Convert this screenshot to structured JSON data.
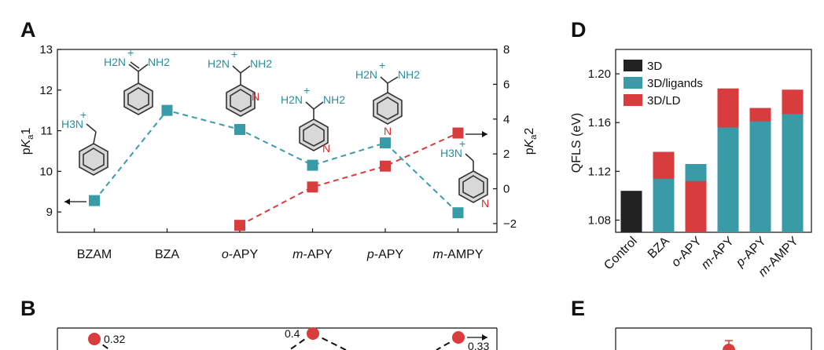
{
  "panels": {
    "A": "A",
    "B": "B",
    "D": "D",
    "E": "E"
  },
  "colors": {
    "teal": "#3a9ba8",
    "red": "#d93c3c",
    "black": "#222222"
  },
  "chart_data": [
    {
      "id": "A",
      "type": "scatter",
      "categories": [
        "BZAM",
        "BZA",
        "o-APY",
        "m-APY",
        "p-APY",
        "m-AMPY"
      ],
      "category_parts": [
        {
          "prefix": "",
          "rest": "BZAM"
        },
        {
          "prefix": "",
          "rest": "BZA"
        },
        {
          "prefix": "o",
          "rest": "-APY"
        },
        {
          "prefix": "m",
          "rest": "-APY"
        },
        {
          "prefix": "p",
          "rest": "-APY"
        },
        {
          "prefix": "m",
          "rest": "-AMPY"
        }
      ],
      "ylabel_left": "pKa1",
      "ylabel_right": "pKa2",
      "ylim_left": [
        8.5,
        13
      ],
      "ylim_right": [
        -2.5,
        8
      ],
      "yticks_left": [
        9,
        10,
        11,
        12,
        13
      ],
      "yticks_right": [
        -2,
        0,
        2,
        4,
        6,
        8
      ],
      "series": [
        {
          "axis": "left",
          "color": "teal",
          "values": [
            9.28,
            11.5,
            11.03,
            10.15,
            10.7,
            8.98
          ]
        },
        {
          "axis": "right",
          "color": "red",
          "values": [
            null,
            null,
            -2.1,
            0.1,
            1.3,
            3.2
          ]
        }
      ],
      "molecules": {
        "bzam": {
          "label": "H3N",
          "plus": "+"
        },
        "bza": {
          "label": "H2N",
          "plus": "+",
          "label2": "NH2"
        },
        "oapy": {
          "label": "H2N",
          "plus": "+",
          "label2": "NH2",
          "n": "N"
        },
        "mapy": {
          "label": "H2N",
          "plus": "+",
          "label2": "NH2",
          "n": "N"
        },
        "papy": {
          "label": "H2N",
          "plus": "+",
          "label2": "NH2",
          "n": "N"
        },
        "mampy": {
          "label": "H3N",
          "plus": "+",
          "n": "N"
        }
      }
    },
    {
      "id": "D",
      "type": "bar",
      "categories": [
        "Control",
        "BZA",
        "o-APY",
        "m-APY",
        "p-APY",
        "m-AMPY"
      ],
      "category_parts": [
        {
          "prefix": "",
          "rest": "Control"
        },
        {
          "prefix": "",
          "rest": "BZA"
        },
        {
          "prefix": "o",
          "rest": "-APY"
        },
        {
          "prefix": "m",
          "rest": "-APY"
        },
        {
          "prefix": "p",
          "rest": "-APY"
        },
        {
          "prefix": "m",
          "rest": "-AMPY"
        }
      ],
      "ylabel": "QFLS (eV)",
      "ylim": [
        1.07,
        1.22
      ],
      "yticks": [
        "1.08",
        "1.12",
        "1.16",
        "1.20"
      ],
      "legend": [
        "3D",
        "3D/ligands",
        "3D/LD"
      ],
      "series": [
        {
          "name": "3D",
          "color": "black",
          "values": [
            1.104,
            null,
            null,
            null,
            null,
            null
          ]
        },
        {
          "name": "3D/ligands",
          "color": "teal",
          "values": [
            null,
            1.114,
            1.126,
            1.156,
            1.161,
            1.167
          ]
        },
        {
          "name": "3D/LD",
          "color": "red",
          "values": [
            null,
            1.136,
            1.112,
            1.188,
            1.172,
            1.187
          ]
        }
      ]
    },
    {
      "id": "B",
      "type": "line",
      "annotations": [
        "0.32",
        "0.4",
        "0.33"
      ],
      "values": [
        0.32,
        0.4,
        0.33
      ]
    }
  ]
}
